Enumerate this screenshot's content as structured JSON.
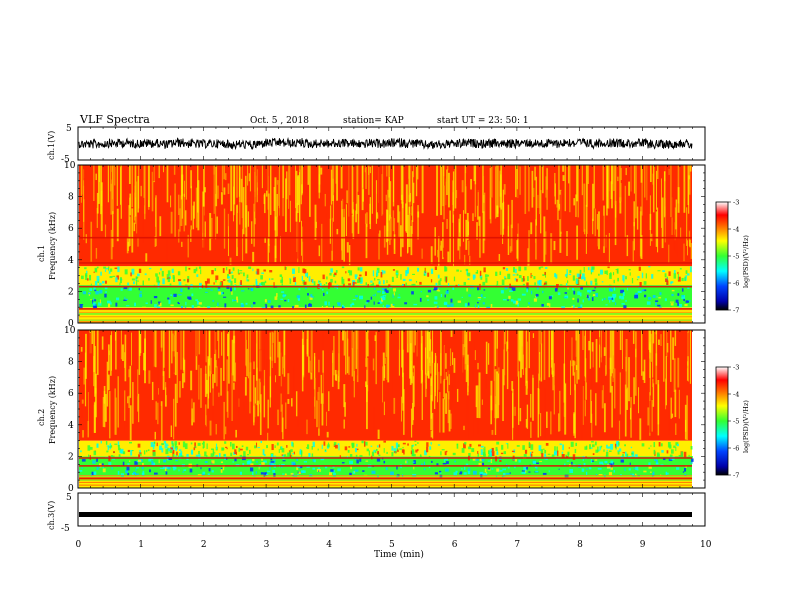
{
  "header": {
    "title": "VLF Spectra",
    "date": "Oct. 5  , 2018",
    "station": "station= KAP",
    "start": "start  UT  =   23: 50: 1"
  },
  "chart_data": [
    {
      "type": "line",
      "panel": "ch1-waveform",
      "ylabel": "ch.1(V)",
      "ylim": [
        -5,
        5
      ],
      "yticks": [
        "5",
        "-5"
      ],
      "xlim": [
        0,
        10
      ],
      "note_values": "noisy waveform oscillating roughly between -2 and +1.5 V for the full 9.8 min record"
    },
    {
      "type": "heatmap",
      "panel": "ch1-spectrogram",
      "ylabel": "ch.1\nFrequency  (kHz)",
      "ylim": [
        0,
        10
      ],
      "yticks": [
        "0",
        "2",
        "4",
        "6",
        "8",
        "10"
      ],
      "xlim": [
        0,
        10
      ],
      "bands": [
        {
          "from_khz": 0,
          "to_khz": 1.0,
          "level": "mixed"
        },
        {
          "from_khz": 1.0,
          "to_khz": 2.4,
          "level": "low"
        },
        {
          "from_khz": 2.4,
          "to_khz": 3.6,
          "level": "mid"
        },
        {
          "from_khz": 3.6,
          "to_khz": 10,
          "level": "high"
        }
      ],
      "lines_khz": [
        3.8,
        5.4,
        2.3,
        0.9
      ],
      "colorbar": {
        "label": "log(PSD)(V²/Hz)",
        "range": [
          -7,
          -3
        ],
        "ticks": [
          "-3",
          "-4",
          "-5",
          "-6",
          "-7"
        ]
      }
    },
    {
      "type": "heatmap",
      "panel": "ch2-spectrogram",
      "ylabel": "ch.2\nFrequency  (kHz)",
      "ylim": [
        0,
        10
      ],
      "yticks": [
        "0",
        "2",
        "4",
        "6",
        "8",
        "10"
      ],
      "xlim": [
        0,
        10
      ],
      "bands": [
        {
          "from_khz": 0,
          "to_khz": 0.8,
          "level": "mixed"
        },
        {
          "from_khz": 0.8,
          "to_khz": 2.0,
          "level": "low"
        },
        {
          "from_khz": 2.0,
          "to_khz": 3.0,
          "level": "mid"
        },
        {
          "from_khz": 3.0,
          "to_khz": 10,
          "level": "high"
        }
      ],
      "lines_khz": [
        1.9,
        1.4,
        0.6
      ],
      "colorbar": {
        "label": "log(PSD)(V²/Hz)",
        "range": [
          -7,
          -3
        ],
        "ticks": [
          "-3",
          "-4",
          "-5",
          "-6",
          "-7"
        ]
      }
    },
    {
      "type": "line",
      "panel": "ch3-waveform",
      "ylabel": "ch.3(V)",
      "ylim": [
        -5,
        5
      ],
      "yticks": [
        "5",
        "-5"
      ],
      "xlim": [
        0,
        10
      ],
      "value": -1.5,
      "xlabel": "Time  (min)",
      "xticks": [
        "0",
        "1",
        "2",
        "3",
        "4",
        "5",
        "6",
        "7",
        "8",
        "9",
        "10"
      ]
    }
  ],
  "colors": {
    "high": "#ff2a00",
    "mid": "#ffee00",
    "green": "#33ff33",
    "cyan": "#00ffee",
    "blue": "#0033ff"
  }
}
